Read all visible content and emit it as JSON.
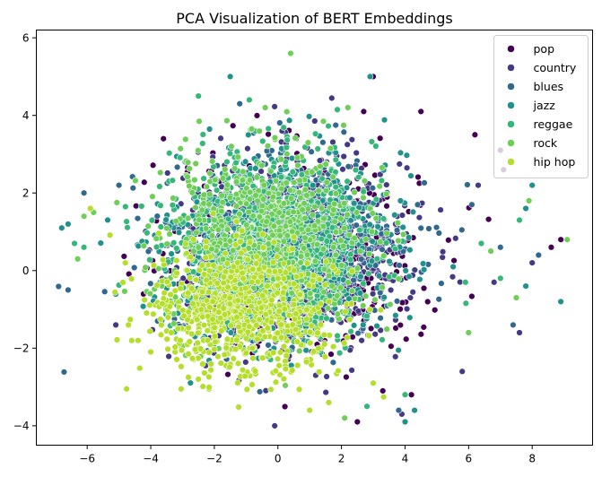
{
  "chart_data": {
    "type": "scatter",
    "title": "PCA Visualization of BERT Embeddings",
    "xlabel": "",
    "ylabel": "",
    "xlim": [
      -7.6,
      9.9
    ],
    "ylim": [
      -4.5,
      6.2
    ],
    "xticks": [
      -6,
      -4,
      -2,
      0,
      2,
      4,
      6,
      8
    ],
    "yticks": [
      -4,
      -2,
      0,
      2,
      4,
      6
    ],
    "grid": false,
    "legend_position": "top-right",
    "series": [
      {
        "name": "pop",
        "color": "#440154",
        "center": [
          0.6,
          0.4
        ],
        "spread": [
          2.4,
          1.45
        ],
        "outliers": [
          [
            8.6,
            0.6
          ],
          [
            8.9,
            0.8
          ],
          [
            3.0,
            5.0
          ],
          [
            2.7,
            4.1
          ],
          [
            4.2,
            -3.2
          ],
          [
            2.5,
            -3.9
          ],
          [
            7.0,
            3.1
          ],
          [
            6.2,
            3.5
          ],
          [
            4.5,
            4.1
          ],
          [
            3.3,
            -3.1
          ],
          [
            7.1,
            2.6
          ],
          [
            -3.6,
            3.4
          ]
        ]
      },
      {
        "name": "country",
        "color": "#443983",
        "center": [
          0.5,
          0.5
        ],
        "spread": [
          2.3,
          1.45
        ],
        "outliers": [
          [
            5.8,
            -2.6
          ],
          [
            7.6,
            -1.6
          ],
          [
            8.0,
            0.2
          ],
          [
            -5.1,
            -1.4
          ],
          [
            3.9,
            -3.7
          ],
          [
            6.3,
            2.2
          ],
          [
            -0.1,
            -4.0
          ],
          [
            6.8,
            -0.3
          ]
        ]
      },
      {
        "name": "blues",
        "color": "#31688e",
        "center": [
          0.3,
          0.6
        ],
        "spread": [
          2.3,
          1.4
        ],
        "outliers": [
          [
            -6.6,
            -0.5
          ],
          [
            7.4,
            -1.4
          ],
          [
            6.1,
            1.7
          ],
          [
            -5.0,
            2.2
          ],
          [
            3.8,
            -3.6
          ],
          [
            -6.1,
            2.0
          ],
          [
            7.0,
            0.6
          ],
          [
            8.2,
            0.4
          ],
          [
            -1.2,
            4.3
          ]
        ]
      },
      {
        "name": "jazz",
        "color": "#21918c",
        "center": [
          0.1,
          0.6
        ],
        "spread": [
          2.2,
          1.45
        ],
        "outliers": [
          [
            -6.6,
            1.2
          ],
          [
            -6.8,
            1.1
          ],
          [
            7.8,
            1.6
          ],
          [
            8.9,
            -0.8
          ],
          [
            2.9,
            5.0
          ],
          [
            -1.5,
            5.0
          ],
          [
            4.3,
            -3.6
          ],
          [
            7.8,
            -0.4
          ],
          [
            8.0,
            2.2
          ],
          [
            4.0,
            -3.9
          ]
        ]
      },
      {
        "name": "reggae",
        "color": "#35b779",
        "center": [
          -0.2,
          0.7
        ],
        "spread": [
          2.1,
          1.4
        ],
        "outliers": [
          [
            -6.1,
            0.6
          ],
          [
            -6.4,
            0.7
          ],
          [
            7.0,
            -0.2
          ],
          [
            -0.9,
            4.4
          ],
          [
            -2.5,
            4.5
          ],
          [
            6.4,
            0.7
          ],
          [
            5.9,
            -0.3
          ],
          [
            7.6,
            1.3
          ],
          [
            4.0,
            -3.2
          ],
          [
            2.8,
            -3.5
          ]
        ]
      },
      {
        "name": "rock",
        "color": "#6ece58",
        "center": [
          -0.4,
          0.8
        ],
        "spread": [
          2.1,
          1.35
        ],
        "outliers": [
          [
            0.4,
            5.6
          ],
          [
            2.2,
            4.2
          ],
          [
            -6.3,
            0.3
          ],
          [
            -5.8,
            1.5
          ],
          [
            7.5,
            -0.7
          ],
          [
            6.0,
            -1.6
          ],
          [
            -6.1,
            1.4
          ],
          [
            9.1,
            0.8
          ],
          [
            -0.4,
            4.2
          ],
          [
            7.9,
            1.8
          ],
          [
            2.1,
            -3.8
          ],
          [
            6.7,
            0.5
          ]
        ]
      },
      {
        "name": "hip hop",
        "color": "#b5de2b",
        "center": [
          -1.1,
          -1.1
        ],
        "spread": [
          1.8,
          1.0
        ],
        "outliers": [
          [
            -4.7,
            -1.4
          ],
          [
            -4.4,
            -1.8
          ],
          [
            -5.9,
            1.6
          ],
          [
            -2.5,
            -2.8
          ],
          [
            1.0,
            -3.6
          ],
          [
            -4.0,
            -2.1
          ],
          [
            3.0,
            -2.9
          ],
          [
            -4.8,
            0.2
          ],
          [
            1.6,
            -3.4
          ]
        ]
      }
    ]
  }
}
